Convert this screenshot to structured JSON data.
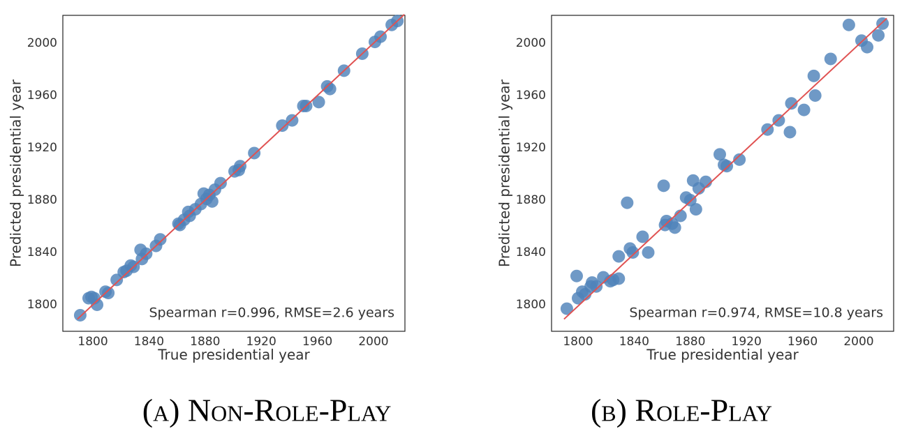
{
  "chart_data": [
    {
      "type": "scatter",
      "caption": "(a) Non-Role-Play",
      "xlabel": "True presidential year",
      "ylabel": "Predicted presidential year",
      "annotation": "Spearman r=0.996, RMSE=2.6 years",
      "color": "#4f82b9",
      "line_color": "#e05252",
      "xlim": [
        1778.6,
        2022.4
      ],
      "ylim": [
        1779.7,
        2021.3
      ],
      "xticks": [
        1800,
        1840,
        1880,
        1920,
        1960,
        2000
      ],
      "yticks": [
        1800,
        1840,
        1880,
        1920,
        1960,
        2000
      ],
      "fit_line": {
        "x": [
          1789,
          2022
        ],
        "y": [
          1789,
          2022
        ]
      },
      "x": [
        1791,
        1797,
        1799,
        1801,
        1803,
        1809,
        1811,
        1817,
        1822,
        1824,
        1827,
        1829,
        1834,
        1835,
        1838,
        1845,
        1848,
        1861,
        1862,
        1865,
        1868,
        1869,
        1873,
        1877,
        1879,
        1881,
        1883,
        1885,
        1887,
        1891,
        1901,
        1904,
        1905,
        1915,
        1935,
        1942,
        1950,
        1952,
        1961,
        1967,
        1969,
        1979,
        1992,
        2001,
        2005,
        2013,
        2017
      ],
      "y": [
        1792,
        1805,
        1806,
        1805,
        1800,
        1810,
        1809,
        1819,
        1825,
        1826,
        1830,
        1829,
        1842,
        1835,
        1839,
        1845,
        1850,
        1862,
        1861,
        1865,
        1871,
        1868,
        1873,
        1877,
        1885,
        1881,
        1884,
        1879,
        1888,
        1893,
        1902,
        1903,
        1906,
        1916,
        1937,
        1941,
        1952,
        1952,
        1955,
        1967,
        1965,
        1979,
        1992,
        2001,
        2005,
        2014,
        2017
      ]
    },
    {
      "type": "scatter",
      "caption": "(b) Role-Play",
      "xlabel": "True presidential year",
      "ylabel": "Predicted presidential year",
      "annotation": "Spearman r=0.974, RMSE=10.8 years",
      "color": "#4f82b9",
      "line_color": "#e05252",
      "xlim": [
        1781.1,
        2024.9
      ],
      "ylim": [
        1779.7,
        2021.3
      ],
      "xticks": [
        1800,
        1840,
        1880,
        1920,
        1960,
        2000
      ],
      "yticks": [
        1800,
        1840,
        1880,
        1920,
        1960,
        2000
      ],
      "fit_line": {
        "x": [
          1790,
          2020
        ],
        "y": [
          1789,
          2019
        ]
      },
      "x": [
        1792,
        1799,
        1800,
        1803,
        1805,
        1809,
        1810,
        1813,
        1818,
        1823,
        1825,
        1829,
        1829,
        1835,
        1837,
        1839,
        1846,
        1850,
        1861,
        1862,
        1863,
        1867,
        1869,
        1873,
        1877,
        1880,
        1882,
        1884,
        1886,
        1891,
        1901,
        1904,
        1906,
        1915,
        1935,
        1943,
        1951,
        1952,
        1961,
        1968,
        1969,
        1980,
        1993,
        2002,
        2006,
        2014,
        2017
      ],
      "y": [
        1797,
        1822,
        1805,
        1810,
        1808,
        1814,
        1817,
        1814,
        1821,
        1818,
        1819,
        1820,
        1837,
        1878,
        1843,
        1840,
        1852,
        1840,
        1891,
        1861,
        1864,
        1862,
        1859,
        1868,
        1882,
        1880,
        1895,
        1873,
        1889,
        1894,
        1915,
        1907,
        1906,
        1911,
        1934,
        1941,
        1932,
        1954,
        1949,
        1975,
        1960,
        1988,
        2014,
        2002,
        1997,
        2006,
        2015
      ]
    }
  ]
}
